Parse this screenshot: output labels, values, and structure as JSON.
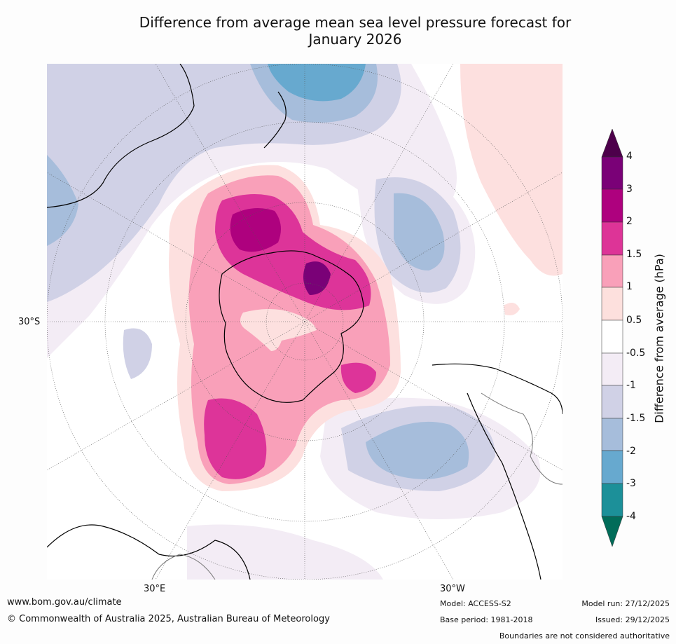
{
  "title_line1": "Difference from average mean sea level pressure forecast for",
  "title_line2": "January 2026",
  "map": {
    "lat_label": "30°S",
    "lon_labels": [
      "30°E",
      "30°W"
    ],
    "colors": {
      "ocean_bg": "#ffffff",
      "pos_0_5": "#fde0df",
      "pos_1": "#f9a0b9",
      "pos_1_5": "#dd3499",
      "pos_2": "#ae017e",
      "pos_3": "#7a0177",
      "neg_0_5": "#f3ecf5",
      "neg_1": "#d0d1e6",
      "neg_1_5": "#a6bddb",
      "neg_2": "#67a9cf",
      "coast": "#000000",
      "border": "#777777",
      "grid": "#555555"
    }
  },
  "colorbar": {
    "title": "Difference from average (hPa)",
    "tick_labels": [
      "4",
      "3",
      "2",
      "1.5",
      "1",
      "0.5",
      "-0.5",
      "-1",
      "-1.5",
      "-2",
      "-3",
      "-4"
    ],
    "colors": [
      "#4d004b",
      "#7a0177",
      "#ae017e",
      "#dd3497",
      "#f9a0b9",
      "#fde0dd",
      "#ffffff",
      "#f3ecf5",
      "#d0d1e6",
      "#a6bddb",
      "#67a9cf",
      "#1c9099",
      "#016c59"
    ]
  },
  "footer": {
    "website": "www.bom.gov.au/climate",
    "copyright": "© Commonwealth of Australia 2025, Australian Bureau of Meteorology",
    "model": "Model: ACCESS-S2",
    "base_period": "Base period: 1981-2018",
    "model_run": "Model run: 27/12/2025",
    "issued": "Issued: 29/12/2025",
    "disclaimer": "Boundaries are not considered authoritative"
  }
}
